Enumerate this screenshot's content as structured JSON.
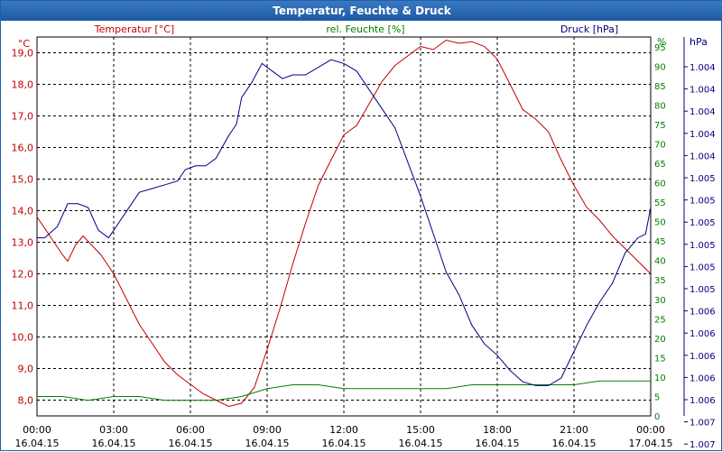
{
  "chart_data": {
    "type": "line",
    "title": "Temperatur, Feuchte & Druck",
    "axes": {
      "left": {
        "label": "Temperatur [°C]",
        "unit": "°C",
        "ylim": [
          7.5,
          19.5
        ],
        "ticks": [
          "8,0",
          "9,0",
          "10,0",
          "11,0",
          "12,0",
          "13,0",
          "14,0",
          "15,0",
          "16,0",
          "17,0",
          "18,0",
          "19,0"
        ],
        "color": "#c00000"
      },
      "mid": {
        "label": "rel. Feuchte [%]",
        "unit": "%",
        "ylim": [
          0,
          97.5
        ],
        "ticks": [
          "0",
          "5",
          "10",
          "15",
          "20",
          "25",
          "30",
          "35",
          "40",
          "45",
          "50",
          "55",
          "60",
          "65",
          "70",
          "75",
          "80",
          "85",
          "90",
          "95"
        ],
        "color": "#008000"
      },
      "right": {
        "label": "Druck [hPa]",
        "unit": "hPa",
        "ylim": [
          0,
          100
        ],
        "ticks": [
          "1.004",
          "1.004",
          "1.004",
          "1.004",
          "1.004",
          "1.005",
          "1.005",
          "1.005",
          "1.005",
          "1.005",
          "1.005",
          "1.006",
          "1.006",
          "1.006",
          "1.006",
          "1.006",
          "1.007",
          "1.007"
        ],
        "color": "#000080"
      }
    },
    "x_ticks": [
      {
        "time": "00:00",
        "date": "16.04.15"
      },
      {
        "time": "03:00",
        "date": "16.04.15"
      },
      {
        "time": "06:00",
        "date": "16.04.15"
      },
      {
        "time": "09:00",
        "date": "16.04.15"
      },
      {
        "time": "12:00",
        "date": "16.04.15"
      },
      {
        "time": "15:00",
        "date": "16.04.15"
      },
      {
        "time": "18:00",
        "date": "16.04.15"
      },
      {
        "time": "21:00",
        "date": "16.04.15"
      },
      {
        "time": "00:00",
        "date": "17.04.15"
      }
    ],
    "xlim_hours": [
      0,
      24
    ],
    "series": [
      {
        "name": "Temperatur",
        "axis": "left",
        "color": "#c00000",
        "x": [
          0,
          0.5,
          1.0,
          1.2,
          1.5,
          1.8,
          2.5,
          3.0,
          3.5,
          4.0,
          4.5,
          5.0,
          5.5,
          6.0,
          6.5,
          7.0,
          7.5,
          8.0,
          8.5,
          9.0,
          9.5,
          10.0,
          10.5,
          11.0,
          11.5,
          12.0,
          12.5,
          13.0,
          13.5,
          14.0,
          14.5,
          15.0,
          15.5,
          16.0,
          16.5,
          17.0,
          17.5,
          18.0,
          18.5,
          19.0,
          19.5,
          20.0,
          20.5,
          21.0,
          21.5,
          22.0,
          22.5,
          23.0,
          23.5,
          24.0
        ],
        "values": [
          13.8,
          13.2,
          12.6,
          12.4,
          12.9,
          13.2,
          12.6,
          12.0,
          11.2,
          10.4,
          9.8,
          9.2,
          8.8,
          8.5,
          8.2,
          8.0,
          7.8,
          7.9,
          8.4,
          9.6,
          10.9,
          12.3,
          13.6,
          14.8,
          15.6,
          16.4,
          16.7,
          17.4,
          18.1,
          18.6,
          18.9,
          19.2,
          19.1,
          19.4,
          19.3,
          19.35,
          19.2,
          18.8,
          18.0,
          17.2,
          16.9,
          16.5,
          15.6,
          14.8,
          14.1,
          13.7,
          13.2,
          12.8,
          12.4,
          12.0
        ]
      },
      {
        "name": "rel. Feuchte",
        "axis": "mid",
        "color": "#008000",
        "x": [
          0,
          1,
          2,
          3,
          4,
          5,
          6,
          7,
          8,
          9,
          10,
          11,
          12,
          13,
          14,
          15,
          16,
          17,
          18,
          19,
          20,
          21,
          22,
          23,
          24
        ],
        "values": [
          5,
          5,
          4,
          5,
          5,
          4,
          4,
          4,
          5,
          7,
          8,
          8,
          7,
          7,
          7,
          7,
          7,
          8,
          8,
          8,
          8,
          8,
          9,
          9,
          9
        ]
      },
      {
        "name": "Druck",
        "axis": "right",
        "color": "#000080",
        "x": [
          0,
          0.3,
          0.8,
          1.2,
          1.6,
          2.0,
          2.4,
          2.8,
          3.0,
          3.5,
          4.0,
          4.5,
          5.0,
          5.5,
          5.8,
          6.2,
          6.6,
          7.0,
          7.5,
          7.8,
          8.0,
          8.4,
          8.8,
          9.2,
          9.6,
          10.0,
          10.5,
          11.0,
          11.5,
          12.0,
          12.5,
          13.0,
          13.5,
          14.0,
          14.5,
          15.0,
          15.5,
          16.0,
          16.5,
          17.0,
          17.5,
          18.0,
          18.5,
          19.0,
          19.5,
          20.0,
          20.5,
          21.0,
          21.5,
          22.0,
          22.5,
          23.0,
          23.5,
          23.8,
          24.0
        ],
        "values": [
          47,
          47,
          50,
          56,
          56,
          55,
          49,
          47,
          49,
          54,
          59,
          60,
          61,
          62,
          65,
          66,
          66,
          68,
          74,
          77,
          84,
          88,
          93,
          91,
          89,
          90,
          90,
          92,
          94,
          93,
          91,
          86,
          81,
          76,
          67,
          58,
          48,
          38,
          32,
          24,
          19,
          16,
          12,
          9,
          8,
          8,
          10,
          17,
          24,
          30,
          35,
          43,
          47,
          48,
          55
        ]
      }
    ]
  }
}
